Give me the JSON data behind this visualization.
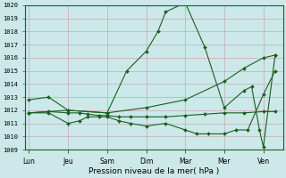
{
  "xlabel": "Pression niveau de la mer( hPa )",
  "ylim": [
    1009,
    1020
  ],
  "yticks": [
    1009,
    1010,
    1011,
    1012,
    1013,
    1014,
    1015,
    1016,
    1017,
    1018,
    1019,
    1020
  ],
  "xtick_labels": [
    "Lun",
    "Jeu",
    "Sam",
    "Dim",
    "Mar",
    "Mer",
    "Ven"
  ],
  "xtick_positions": [
    0,
    1,
    2,
    3,
    4,
    5,
    6
  ],
  "xlim": [
    -0.1,
    6.5
  ],
  "background_color": "#cce8e8",
  "grid_color_major": "#c8a8b8",
  "grid_color_minor": "#dcc8d4",
  "line_color": "#1a6020",
  "line1_x": [
    0,
    0.5,
    1,
    2,
    2.5,
    3.0,
    3.3,
    3.5,
    4.0,
    4.5,
    5.0,
    5.5,
    5.7,
    5.9,
    6.0,
    6.3
  ],
  "line1_y": [
    1012.8,
    1013.0,
    1012.0,
    1011.8,
    1015.0,
    1016.5,
    1018.0,
    1019.5,
    1020.2,
    1016.8,
    1012.2,
    1013.5,
    1013.8,
    1010.5,
    1009.2,
    1016.2
  ],
  "line2_x": [
    0,
    1,
    2,
    3,
    4,
    5,
    5.5,
    6.0,
    6.3
  ],
  "line2_y": [
    1011.8,
    1012.0,
    1011.8,
    1012.2,
    1012.8,
    1014.2,
    1015.2,
    1016.0,
    1016.2
  ],
  "line3_x": [
    0,
    0.5,
    1,
    1.3,
    1.5,
    1.8,
    2.0,
    2.3,
    2.6,
    3.0,
    3.5,
    4.0,
    4.5,
    5.0,
    5.5,
    6.0,
    6.3
  ],
  "line3_y": [
    1011.8,
    1011.9,
    1011.8,
    1011.8,
    1011.7,
    1011.6,
    1011.6,
    1011.5,
    1011.5,
    1011.5,
    1011.5,
    1011.6,
    1011.7,
    1011.8,
    1011.8,
    1011.9,
    1011.9
  ],
  "line4_x": [
    0,
    0.5,
    1,
    1.3,
    1.5,
    1.8,
    2.0,
    2.3,
    2.6,
    3.0,
    3.5,
    4.0,
    4.3,
    4.6,
    5.0,
    5.3,
    5.6,
    6.0,
    6.3
  ],
  "line4_y": [
    1011.8,
    1011.8,
    1011.0,
    1011.2,
    1011.5,
    1011.5,
    1011.5,
    1011.2,
    1011.0,
    1010.8,
    1011.0,
    1010.5,
    1010.2,
    1010.2,
    1010.2,
    1010.5,
    1010.5,
    1013.2,
    1015.0
  ]
}
